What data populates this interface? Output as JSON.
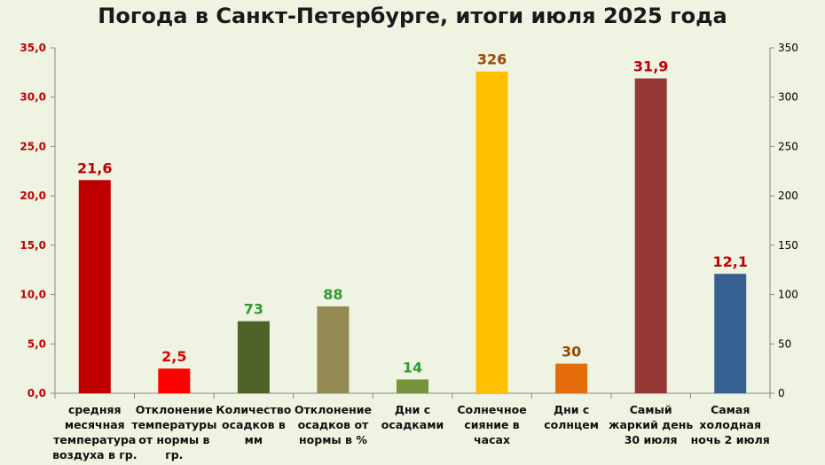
{
  "chart_data": {
    "type": "bar",
    "title": "Погода в Санкт-Петербурге, итоги июля 2025 года",
    "y_left": {
      "min": 0,
      "max": 35,
      "step": 5,
      "ticks": [
        "0,0",
        "5,0",
        "10,0",
        "15,0",
        "20,0",
        "25,0",
        "30,0",
        "35,0"
      ],
      "tick_color": "#c00000"
    },
    "y_right": {
      "min": 0,
      "max": 350,
      "step": 50,
      "ticks": [
        "0",
        "50",
        "100",
        "150",
        "200",
        "250",
        "300",
        "350"
      ],
      "tick_color": "#000000"
    },
    "grid": false,
    "categories": [
      "средняя месячная температура воздуха в гр.",
      "Отклонение температуры от нормы в гр.",
      "Количество осадков в мм",
      "Отклонение осадков от нормы в %",
      "Дни с осадками",
      "Солнечное сияние в часах",
      "Дни с солнцем",
      "Самый жаркий день 30 июля",
      "Самая холодная ночь 2 июля"
    ],
    "bars": [
      {
        "value": 21.6,
        "label": "21,6",
        "axis": "left",
        "color": "#c00000",
        "label_color": "#c00000"
      },
      {
        "value": 2.5,
        "label": "2,5",
        "axis": "left",
        "color": "#ff0000",
        "label_color": "#e00000"
      },
      {
        "value": 73,
        "label": "73",
        "axis": "right",
        "color": "#4f6228",
        "label_color": "#339933"
      },
      {
        "value": 88,
        "label": "88",
        "axis": "right",
        "color": "#948a54",
        "label_color": "#339933"
      },
      {
        "value": 14,
        "label": "14",
        "axis": "right",
        "color": "#77933c",
        "label_color": "#339933"
      },
      {
        "value": 326,
        "label": "326",
        "axis": "right",
        "color": "#ffc000",
        "label_color": "#984807"
      },
      {
        "value": 30,
        "label": "30",
        "axis": "right",
        "color": "#e46c0a",
        "label_color": "#984807"
      },
      {
        "value": 31.9,
        "label": "31,9",
        "axis": "left",
        "color": "#953735",
        "label_color": "#c00000"
      },
      {
        "value": 12.1,
        "label": "12,1",
        "axis": "left",
        "color": "#376092",
        "label_color": "#c00000"
      }
    ]
  },
  "category_lines": [
    [
      "средняя",
      "месячная",
      "температура",
      "воздуха в гр."
    ],
    [
      "Отклонение",
      "температуры",
      "от нормы в гр."
    ],
    [
      "Количество",
      "осадков в мм"
    ],
    [
      "Отклонение",
      "осадков от",
      "нормы в %"
    ],
    [
      "Дни с",
      "осадками"
    ],
    [
      "Солнечное",
      "сияние в",
      "часах"
    ],
    [
      "Дни с",
      "солнцем"
    ],
    [
      "Самый",
      "жаркий день",
      "30 июля"
    ],
    [
      "Самая",
      "холодная",
      "ночь 2 июля"
    ]
  ]
}
